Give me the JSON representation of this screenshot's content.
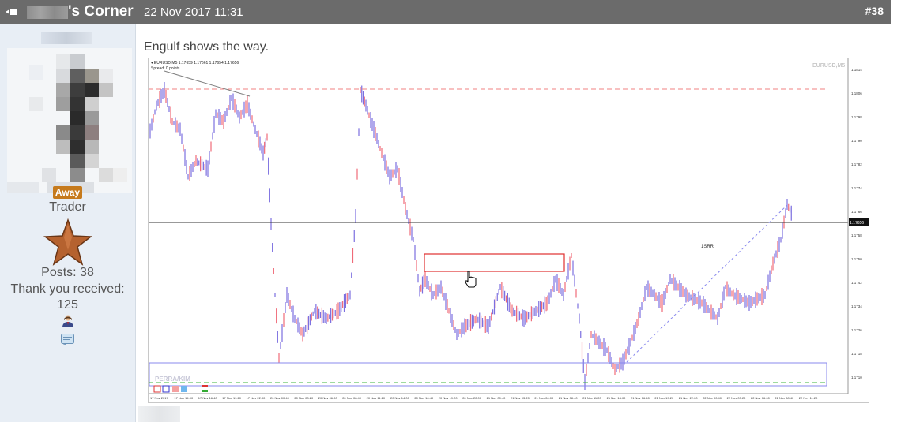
{
  "post": {
    "author_title": "'s Corner",
    "date": "22 Nov 2017 11:31",
    "number": "#38",
    "text": "Engulf shows the way."
  },
  "user": {
    "status": "Away",
    "rank": "Trader",
    "posts": "Posts: 38",
    "thanks_label": "Thank you received:",
    "thanks_count": "125"
  },
  "chart": {
    "header": "▾ EURUSD,M5  1.17659 1.17661 1.17654 1.17656",
    "spread": "Spread: 0 points",
    "watermark": "EURUSD,M5",
    "annotation": "1SRR",
    "bottom_label": "PERRA/KIM",
    "current_price": "1.17656",
    "price_ticks": [
      "1.1814",
      "1.1806",
      "1.1798",
      "1.1790",
      "1.1782",
      "1.1774",
      "1.1766",
      "1.1758",
      "1.1750",
      "1.1742",
      "1.1734",
      "1.1726",
      "1.1718",
      "1.1710"
    ],
    "time_ticks": [
      "17 Nov 2017",
      "17 Nov 14:00",
      "17 Nov 16:40",
      "17 Nov 19:20",
      "17 Nov 22:00",
      "20 Nov 00:40",
      "20 Nov 03:20",
      "20 Nov 06:00",
      "20 Nov 08:40",
      "20 Nov 11:20",
      "20 Nov 14:00",
      "20 Nov 16:40",
      "20 Nov 19:20",
      "20 Nov 22:00",
      "21 Nov 00:40",
      "21 Nov 03:20",
      "21 Nov 06:00",
      "21 Nov 08:40",
      "21 Nov 11:20",
      "21 Nov 14:00",
      "21 Nov 16:40",
      "21 Nov 19:20",
      "21 Nov 22:00",
      "22 Nov 00:40",
      "22 Nov 03:20",
      "22 Nov 06:00",
      "22 Nov 08:40",
      "22 Nov 11:20"
    ]
  }
}
